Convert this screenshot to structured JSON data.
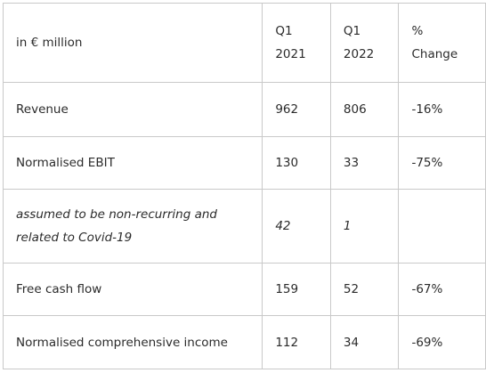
{
  "table": {
    "header": {
      "label": "in € million",
      "col1": [
        "Q1",
        "2021"
      ],
      "col2": [
        "Q1",
        "2022"
      ],
      "col3": [
        "%",
        "Change"
      ]
    },
    "rows": [
      {
        "label": [
          "Revenue"
        ],
        "q1_2021": "962",
        "q1_2022": "806",
        "change": "-16%",
        "italic": false
      },
      {
        "label": [
          "Normalised EBIT"
        ],
        "q1_2021": "130",
        "q1_2022": "33",
        "change": "-75%",
        "italic": false
      },
      {
        "label": [
          "assumed to be non-recurring and",
          "related to Covid-19"
        ],
        "q1_2021": "42",
        "q1_2022": "1",
        "change": "",
        "italic": true
      },
      {
        "label": [
          "Free cash flow"
        ],
        "q1_2021": "159",
        "q1_2022": "52",
        "change": "-67%",
        "italic": false
      },
      {
        "label": [
          "Normalised comprehensive income"
        ],
        "q1_2021": "112",
        "q1_2022": "34",
        "change": "-69%",
        "italic": false
      }
    ]
  }
}
